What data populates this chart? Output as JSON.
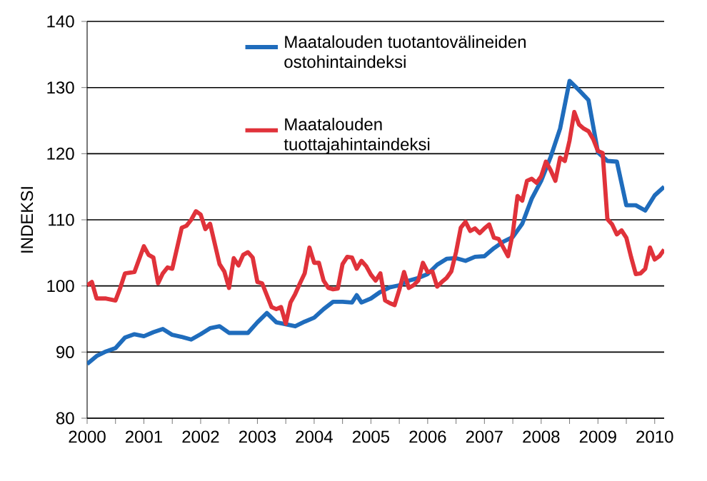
{
  "chart_data": {
    "type": "line",
    "ylabel": "INDEKSI",
    "grid": "y",
    "legend": "top",
    "xlim": [
      "2000-01",
      "2010-03"
    ],
    "xticks": [
      "2000",
      "2001",
      "2002",
      "2003",
      "2004",
      "2005",
      "2006",
      "2007",
      "2008",
      "2009",
      "2010"
    ],
    "ylim": [
      80,
      140
    ],
    "yticks": [
      80,
      90,
      100,
      110,
      120,
      130,
      140
    ],
    "series": [
      {
        "name": "Maatalouden tuotantovälineiden ostohintaindeksi",
        "color": "#1f6cbc",
        "x": [
          "2000-01",
          "2000-03",
          "2000-05",
          "2000-07",
          "2000-09",
          "2000-11",
          "2001-01",
          "2001-03",
          "2001-05",
          "2001-07",
          "2001-09",
          "2001-11",
          "2002-01",
          "2002-03",
          "2002-05",
          "2002-07",
          "2002-09",
          "2002-11",
          "2003-01",
          "2003-03",
          "2003-05",
          "2003-07",
          "2003-09",
          "2003-11",
          "2004-01",
          "2004-03",
          "2004-05",
          "2004-07",
          "2004-09",
          "2004-10",
          "2004-11",
          "2005-01",
          "2005-03",
          "2005-05",
          "2005-07",
          "2005-09",
          "2005-11",
          "2006-01",
          "2006-03",
          "2006-05",
          "2006-07",
          "2006-09",
          "2006-11",
          "2007-01",
          "2007-03",
          "2007-05",
          "2007-07",
          "2007-09",
          "2007-11",
          "2008-01",
          "2008-03",
          "2008-05",
          "2008-07",
          "2008-09",
          "2008-11",
          "2009-01",
          "2009-03",
          "2009-05",
          "2009-07",
          "2009-09",
          "2009-11",
          "2010-01",
          "2010-03"
        ],
        "values": [
          88.2,
          89.4,
          90.1,
          90.6,
          92.2,
          92.7,
          92.4,
          93.0,
          93.5,
          92.6,
          92.3,
          91.9,
          92.7,
          93.6,
          93.9,
          92.9,
          92.9,
          92.9,
          94.5,
          95.9,
          94.5,
          94.2,
          93.9,
          94.6,
          95.2,
          96.5,
          97.6,
          97.6,
          97.5,
          98.6,
          97.5,
          98.1,
          99.1,
          99.8,
          100.1,
          100.8,
          101.2,
          101.8,
          103.2,
          104.1,
          104.2,
          103.8,
          104.4,
          104.5,
          105.7,
          106.7,
          107.4,
          109.4,
          113.2,
          115.9,
          119.5,
          123.8,
          131.0,
          129.6,
          128.1,
          120.2,
          118.9,
          118.8,
          112.2,
          112.2,
          111.4,
          113.7,
          115.0
        ]
      },
      {
        "name": "Maatalouden tuottajahintaindeksi",
        "color": "#e0323a",
        "x": [
          "2000-01",
          "2000-02",
          "2000-03",
          "2000-05",
          "2000-07",
          "2000-08",
          "2000-09",
          "2000-11",
          "2001-01",
          "2001-02",
          "2001-03",
          "2001-04",
          "2001-05",
          "2001-06",
          "2001-07",
          "2001-09",
          "2001-10",
          "2001-11",
          "2001-12",
          "2002-01",
          "2002-02",
          "2002-03",
          "2002-05",
          "2002-06",
          "2002-07",
          "2002-08",
          "2002-09",
          "2002-10",
          "2002-11",
          "2002-12",
          "2003-01",
          "2003-02",
          "2003-04",
          "2003-05",
          "2003-06",
          "2003-07",
          "2003-08",
          "2003-09",
          "2003-10",
          "2003-11",
          "2003-12",
          "2004-01",
          "2004-02",
          "2004-03",
          "2004-04",
          "2004-05",
          "2004-06",
          "2004-07",
          "2004-08",
          "2004-09",
          "2004-10",
          "2004-11",
          "2004-12",
          "2005-01",
          "2005-02",
          "2005-03",
          "2005-04",
          "2005-05",
          "2005-06",
          "2005-07",
          "2005-08",
          "2005-09",
          "2005-10",
          "2005-11",
          "2005-12",
          "2006-01",
          "2006-02",
          "2006-03",
          "2006-04",
          "2006-05",
          "2006-06",
          "2006-07",
          "2006-08",
          "2006-09",
          "2006-10",
          "2006-11",
          "2006-12",
          "2007-01",
          "2007-02",
          "2007-03",
          "2007-04",
          "2007-05",
          "2007-06",
          "2007-07",
          "2007-08",
          "2007-09",
          "2007-10",
          "2007-11",
          "2007-12",
          "2008-01",
          "2008-02",
          "2008-03",
          "2008-04",
          "2008-05",
          "2008-06",
          "2008-07",
          "2008-08",
          "2008-09",
          "2008-10",
          "2008-11",
          "2008-12",
          "2009-01",
          "2009-02",
          "2009-03",
          "2009-04",
          "2009-05",
          "2009-06",
          "2009-07",
          "2009-08",
          "2009-09",
          "2009-10",
          "2009-11",
          "2009-12",
          "2010-01",
          "2010-02",
          "2010-03"
        ],
        "values": [
          100.1,
          100.6,
          98.1,
          98.1,
          97.8,
          99.7,
          101.9,
          102.1,
          106.0,
          104.7,
          104.3,
          100.4,
          101.9,
          102.8,
          102.6,
          108.8,
          109.1,
          110.0,
          111.3,
          110.8,
          108.6,
          109.4,
          103.3,
          102.2,
          99.7,
          104.2,
          103.1,
          104.7,
          105.1,
          104.3,
          100.6,
          100.4,
          96.8,
          96.5,
          96.8,
          94.3,
          97.5,
          98.8,
          100.4,
          101.9,
          105.8,
          103.5,
          103.5,
          100.8,
          99.7,
          99.5,
          99.6,
          103.3,
          104.4,
          104.3,
          102.6,
          103.8,
          103.0,
          101.7,
          100.8,
          101.9,
          97.8,
          97.4,
          97.1,
          99.4,
          102.1,
          99.7,
          100.1,
          100.8,
          103.5,
          102.1,
          102.2,
          99.9,
          100.6,
          101.2,
          102.2,
          105.1,
          108.8,
          109.7,
          108.3,
          108.7,
          108.0,
          108.7,
          109.3,
          107.3,
          107.1,
          105.8,
          104.5,
          108.0,
          113.6,
          112.9,
          115.9,
          116.2,
          115.6,
          116.6,
          118.8,
          117.5,
          115.9,
          119.4,
          118.9,
          122.0,
          126.3,
          124.4,
          123.8,
          123.4,
          122.2,
          120.4,
          120.1,
          110.1,
          109.3,
          107.8,
          108.4,
          107.3,
          104.4,
          101.8,
          101.9,
          102.6,
          105.8,
          104.0,
          104.5,
          105.5
        ]
      }
    ]
  }
}
